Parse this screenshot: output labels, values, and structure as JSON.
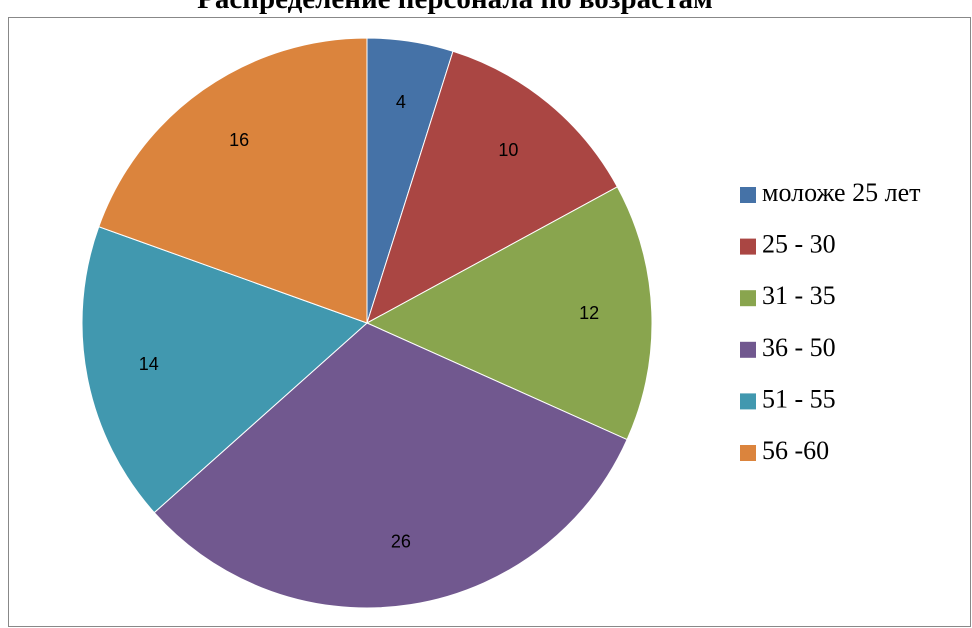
{
  "chart_data": {
    "type": "pie",
    "title": "Распределение персонала по возрастам",
    "categories": [
      "моложе 25 лет",
      "25 - 30",
      "31 - 35",
      "36 - 50",
      "51 - 55",
      "56 -60"
    ],
    "values": [
      4,
      10,
      12,
      26,
      14,
      16
    ],
    "colors": [
      "#4572a7",
      "#aa4643",
      "#89a54e",
      "#71588f",
      "#4198af",
      "#db843d"
    ],
    "legend": "right"
  }
}
